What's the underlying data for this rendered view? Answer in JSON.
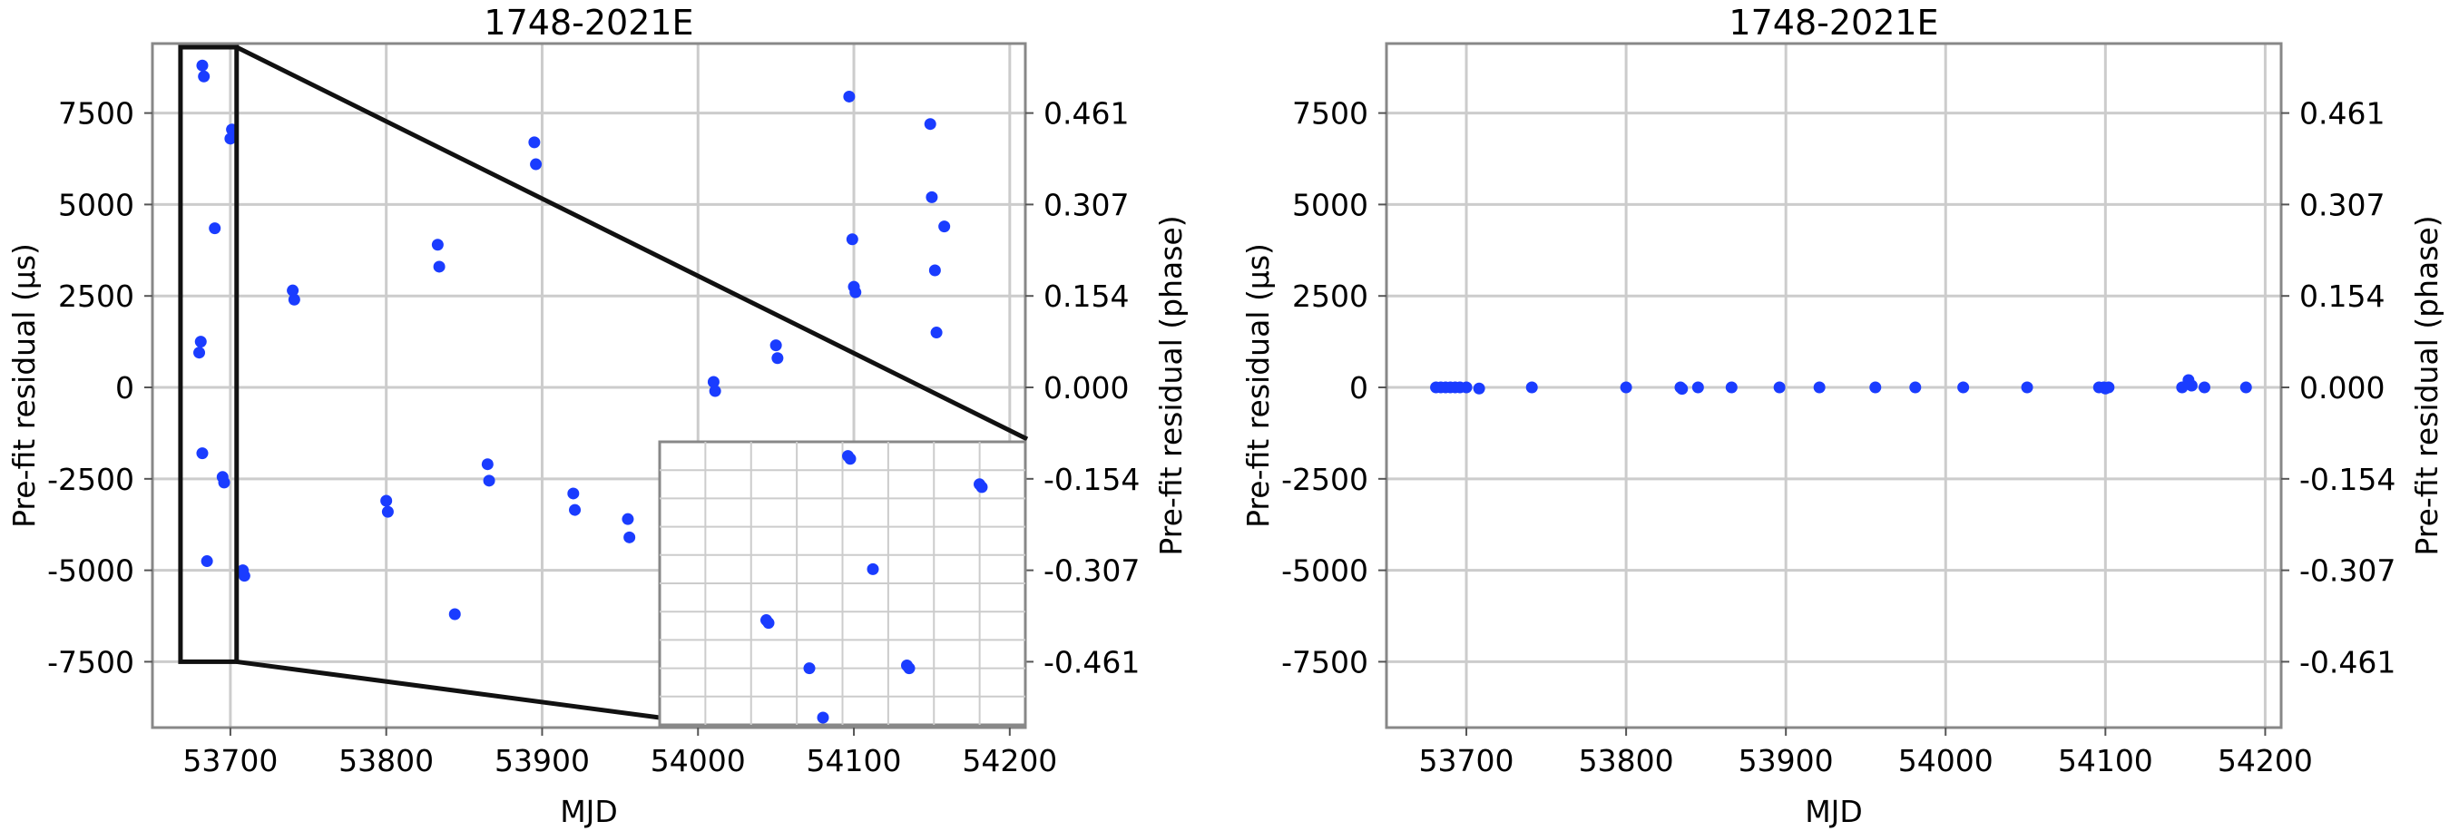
{
  "chart_data": [
    {
      "type": "scatter",
      "title": "1748-2021E",
      "xlabel": "MJD",
      "ylabel": "Pre-fit residual (μs)",
      "y2label": "Pre-fit residual (phase)",
      "xlim": [
        53650,
        54210
      ],
      "ylim": [
        -9300,
        9400
      ],
      "xticks": [
        53700,
        53800,
        53900,
        54000,
        54100,
        54200
      ],
      "yticks": [
        -7500,
        -5000,
        -2500,
        0,
        2500,
        5000,
        7500
      ],
      "y2ticks": [
        {
          "value": 7500,
          "label": "0.461"
        },
        {
          "value": 5000,
          "label": "0.307"
        },
        {
          "value": 2500,
          "label": "0.154"
        },
        {
          "value": 0,
          "label": "0.000"
        },
        {
          "value": -2500,
          "label": "-0.154"
        },
        {
          "value": -5000,
          "label": "-0.307"
        },
        {
          "value": -7500,
          "label": "-0.461"
        }
      ],
      "grid": true,
      "zoom_box": {
        "x": [
          53668,
          53704
        ],
        "y": [
          -7500,
          9300
        ]
      },
      "inset": {
        "description": "zoom of highlighted region",
        "points": [
          {
            "x": 0.31,
            "y": 0.37
          },
          {
            "x": 0.32,
            "y": 0.36
          },
          {
            "x": 0.5,
            "y": 0.2
          },
          {
            "x": 0.56,
            "y": 0.02
          },
          {
            "x": 0.67,
            "y": 0.95
          },
          {
            "x": 0.68,
            "y": 0.94
          },
          {
            "x": 0.78,
            "y": 0.55
          },
          {
            "x": 0.93,
            "y": 0.21
          },
          {
            "x": 0.94,
            "y": 0.2
          },
          {
            "x": 1.25,
            "y": 0.85
          },
          {
            "x": 1.26,
            "y": 0.84
          }
        ]
      },
      "points": [
        {
          "x": 53682,
          "y": 8800
        },
        {
          "x": 53683,
          "y": 8500
        },
        {
          "x": 53701,
          "y": 7050
        },
        {
          "x": 53700,
          "y": 6800
        },
        {
          "x": 53690,
          "y": 4350
        },
        {
          "x": 53681,
          "y": 1250
        },
        {
          "x": 53680,
          "y": 950
        },
        {
          "x": 53682,
          "y": -1800
        },
        {
          "x": 53695,
          "y": -2450
        },
        {
          "x": 53696,
          "y": -2600
        },
        {
          "x": 53685,
          "y": -4750
        },
        {
          "x": 53708,
          "y": -5000
        },
        {
          "x": 53709,
          "y": -5150
        },
        {
          "x": 53740,
          "y": 2650
        },
        {
          "x": 53741,
          "y": 2400
        },
        {
          "x": 53800,
          "y": -3100
        },
        {
          "x": 53801,
          "y": -3400
        },
        {
          "x": 53833,
          "y": 3900
        },
        {
          "x": 53834,
          "y": 3300
        },
        {
          "x": 53844,
          "y": -6200
        },
        {
          "x": 53865,
          "y": -2100
        },
        {
          "x": 53866,
          "y": -2550
        },
        {
          "x": 53895,
          "y": 6700
        },
        {
          "x": 53896,
          "y": 6100
        },
        {
          "x": 53920,
          "y": -2900
        },
        {
          "x": 53921,
          "y": -3350
        },
        {
          "x": 53955,
          "y": -3600
        },
        {
          "x": 53956,
          "y": -4100
        },
        {
          "x": 54010,
          "y": 150
        },
        {
          "x": 54011,
          "y": -100
        },
        {
          "x": 54050,
          "y": 1150
        },
        {
          "x": 54051,
          "y": 800
        },
        {
          "x": 54097,
          "y": 7950
        },
        {
          "x": 54099,
          "y": 4050
        },
        {
          "x": 54100,
          "y": 2750
        },
        {
          "x": 54101,
          "y": 2600
        },
        {
          "x": 54149,
          "y": 7200
        },
        {
          "x": 54150,
          "y": 5200
        },
        {
          "x": 54152,
          "y": 3200
        },
        {
          "x": 54153,
          "y": 1500
        },
        {
          "x": 54158,
          "y": 4400
        }
      ]
    },
    {
      "type": "scatter",
      "title": "1748-2021E",
      "xlabel": "MJD",
      "ylabel": "Pre-fit residual (μs)",
      "y2label": "Pre-fit residual (phase)",
      "xlim": [
        53650,
        54210
      ],
      "ylim": [
        -9300,
        9400
      ],
      "xticks": [
        53700,
        53800,
        53900,
        54000,
        54100,
        54200
      ],
      "yticks": [
        -7500,
        -5000,
        -2500,
        0,
        2500,
        5000,
        7500
      ],
      "y2ticks": [
        {
          "value": 7500,
          "label": "0.461"
        },
        {
          "value": 5000,
          "label": "0.307"
        },
        {
          "value": 2500,
          "label": "0.154"
        },
        {
          "value": 0,
          "label": "0.000"
        },
        {
          "value": -2500,
          "label": "-0.154"
        },
        {
          "value": -5000,
          "label": "-0.307"
        },
        {
          "value": -7500,
          "label": "-0.461"
        }
      ],
      "grid": true,
      "points": [
        {
          "x": 53681,
          "y": 0
        },
        {
          "x": 53684,
          "y": 0
        },
        {
          "x": 53687,
          "y": 0
        },
        {
          "x": 53690,
          "y": 0
        },
        {
          "x": 53693,
          "y": 0
        },
        {
          "x": 53696,
          "y": 0
        },
        {
          "x": 53700,
          "y": 0
        },
        {
          "x": 53708,
          "y": -30
        },
        {
          "x": 53741,
          "y": 0
        },
        {
          "x": 53800,
          "y": 0
        },
        {
          "x": 53834,
          "y": 0
        },
        {
          "x": 53835,
          "y": -40
        },
        {
          "x": 53845,
          "y": 0
        },
        {
          "x": 53866,
          "y": 0
        },
        {
          "x": 53896,
          "y": 0
        },
        {
          "x": 53921,
          "y": 0
        },
        {
          "x": 53956,
          "y": 0
        },
        {
          "x": 53981,
          "y": 0
        },
        {
          "x": 54011,
          "y": 0
        },
        {
          "x": 54051,
          "y": 0
        },
        {
          "x": 54096,
          "y": 0
        },
        {
          "x": 54099,
          "y": 0
        },
        {
          "x": 54100,
          "y": -30
        },
        {
          "x": 54102,
          "y": 0
        },
        {
          "x": 54148,
          "y": 0
        },
        {
          "x": 54152,
          "y": 200
        },
        {
          "x": 54154,
          "y": 50
        },
        {
          "x": 54162,
          "y": 0
        },
        {
          "x": 54188,
          "y": 0
        }
      ]
    }
  ]
}
